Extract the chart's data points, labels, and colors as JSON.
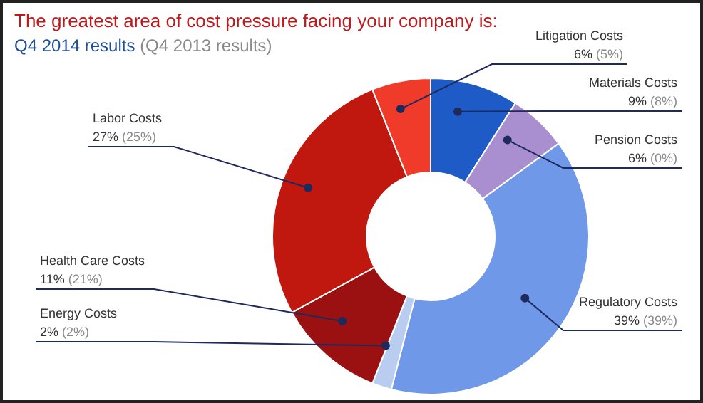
{
  "chart_data": {
    "type": "donut",
    "title": "The greatest area of cost pressure facing your company is:",
    "subtitle": "Q4 2014 results (Q4 2013 results)",
    "categories": [
      "Materials Costs",
      "Pension Costs",
      "Regulatory Costs",
      "Energy Costs",
      "Health Care Costs",
      "Labor Costs",
      "Litigation Costs"
    ],
    "values": [
      9,
      6,
      39,
      2,
      11,
      27,
      6
    ],
    "value_labels": [
      "9% (8%)",
      "6% (0%)",
      "39% (39%)",
      "2% (2%)",
      "11% (21%)",
      "27% (25%)",
      "6% (5%)"
    ],
    "colors": [
      "#1f5bc6",
      "#a98fd0",
      "#6f98e8",
      "#b8cdf0",
      "#9b1010",
      "#c0180f",
      "#f03a2a"
    ],
    "legend": false
  }
}
